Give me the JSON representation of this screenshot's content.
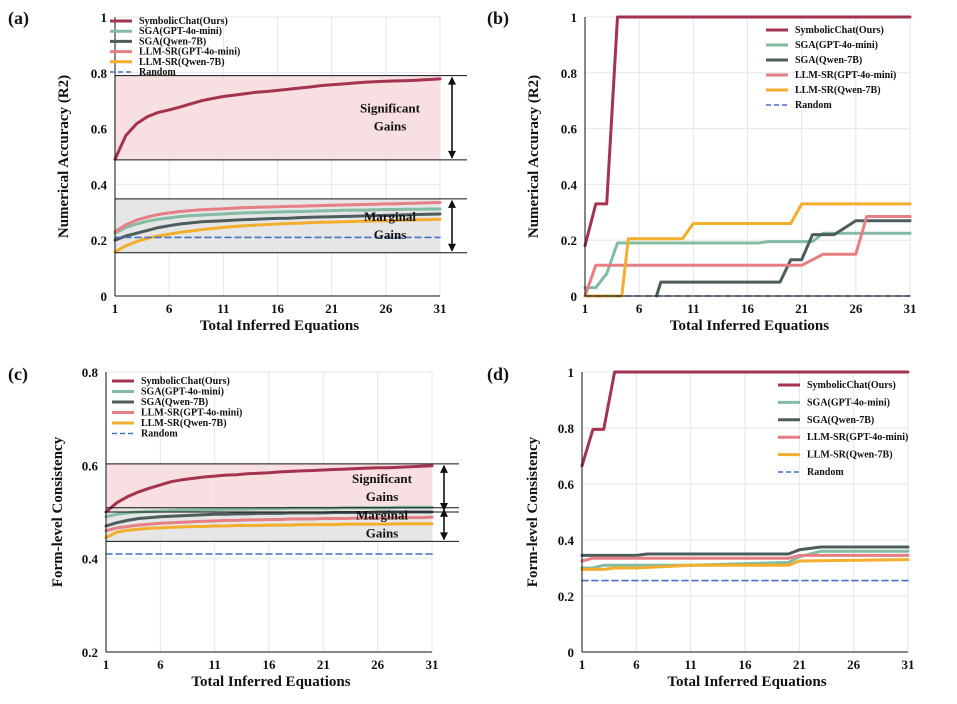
{
  "figure": {
    "panel_labels": [
      "(a)",
      "(b)",
      "(c)",
      "(d)"
    ]
  },
  "colors": {
    "SymbolicChat(Ours)": "#a3334f",
    "SGA(GPT-4o-mini)": "#83bca2",
    "SGA(Qwen-7B)": "#4d5d5e",
    "LLM-SR(GPT-4o-mini)": "#e57f84",
    "LLM-SR(Qwen-7B)": "#f2ae2c",
    "Random": "#4472c4",
    "significant_band": "#f6dcdf",
    "marginal_band": "#e3e3e3"
  },
  "chart_data": [
    {
      "panel": "(a)",
      "type": "line",
      "xlabel": "Total Inferred Equations",
      "ylabel": "Numerical Accuracy (R2)",
      "xlim": [
        1,
        31
      ],
      "ylim": [
        0,
        1
      ],
      "xticks": [
        1,
        6,
        11,
        16,
        21,
        26,
        31
      ],
      "yticks": [
        0,
        0.2,
        0.4,
        0.6,
        0.8,
        1
      ],
      "ytick_labels": [
        "0",
        "0.2",
        "0.4",
        "0.6",
        "0.8",
        "1"
      ],
      "x": [
        1,
        2,
        3,
        4,
        5,
        6,
        7,
        8,
        9,
        10,
        11,
        12,
        13,
        14,
        15,
        16,
        17,
        18,
        19,
        20,
        21,
        22,
        23,
        24,
        25,
        26,
        27,
        28,
        29,
        30,
        31
      ],
      "series": [
        {
          "name": "SymbolicChat(Ours)",
          "values": [
            0.49,
            0.575,
            0.618,
            0.643,
            0.658,
            0.667,
            0.677,
            0.689,
            0.7,
            0.708,
            0.715,
            0.72,
            0.725,
            0.73,
            0.733,
            0.737,
            0.741,
            0.745,
            0.749,
            0.754,
            0.757,
            0.76,
            0.763,
            0.766,
            0.768,
            0.77,
            0.771,
            0.772,
            0.774,
            0.776,
            0.778
          ]
        },
        {
          "name": "SGA(GPT-4o-mini)",
          "values": [
            0.225,
            0.245,
            0.258,
            0.268,
            0.275,
            0.28,
            0.285,
            0.288,
            0.29,
            0.292,
            0.294,
            0.296,
            0.298,
            0.299,
            0.3,
            0.301,
            0.302,
            0.303,
            0.304,
            0.305,
            0.306,
            0.307,
            0.308,
            0.308,
            0.309,
            0.31,
            0.31,
            0.311,
            0.311,
            0.312,
            0.312
          ]
        },
        {
          "name": "SGA(Qwen-7B)",
          "values": [
            0.2,
            0.215,
            0.225,
            0.235,
            0.245,
            0.252,
            0.258,
            0.262,
            0.266,
            0.268,
            0.27,
            0.272,
            0.274,
            0.275,
            0.277,
            0.278,
            0.279,
            0.281,
            0.282,
            0.283,
            0.284,
            0.285,
            0.286,
            0.287,
            0.288,
            0.289,
            0.29,
            0.291,
            0.292,
            0.293,
            0.294
          ]
        },
        {
          "name": "LLM-SR(GPT-4o-mini)",
          "values": [
            0.23,
            0.255,
            0.272,
            0.283,
            0.292,
            0.298,
            0.303,
            0.306,
            0.309,
            0.311,
            0.313,
            0.315,
            0.317,
            0.318,
            0.319,
            0.32,
            0.321,
            0.322,
            0.323,
            0.324,
            0.325,
            0.326,
            0.327,
            0.328,
            0.329,
            0.33,
            0.331,
            0.332,
            0.333,
            0.334,
            0.335
          ]
        },
        {
          "name": "LLM-SR(Qwen-7B)",
          "values": [
            0.158,
            0.18,
            0.195,
            0.207,
            0.215,
            0.222,
            0.228,
            0.233,
            0.238,
            0.242,
            0.246,
            0.249,
            0.252,
            0.254,
            0.256,
            0.258,
            0.26,
            0.261,
            0.263,
            0.264,
            0.265,
            0.266,
            0.267,
            0.268,
            0.269,
            0.27,
            0.271,
            0.272,
            0.273,
            0.274,
            0.275
          ]
        },
        {
          "name": "Random",
          "values": [
            0.21,
            0.21,
            0.21,
            0.21,
            0.21,
            0.21,
            0.21,
            0.21,
            0.21,
            0.21,
            0.21,
            0.21,
            0.21,
            0.21,
            0.21,
            0.21,
            0.21,
            0.21,
            0.21,
            0.21,
            0.21,
            0.21,
            0.21,
            0.21,
            0.21,
            0.21,
            0.21,
            0.21,
            0.21,
            0.21,
            0.21
          ]
        }
      ],
      "bands": [
        {
          "label": "Significant Gains",
          "lines": [
            "Significant",
            "Gains"
          ],
          "y_low": 0.488,
          "y_high": 0.79,
          "color_key": "significant_band"
        },
        {
          "label": "Marginal Gains",
          "lines": [
            "Marginal",
            "Gains"
          ],
          "y_low": 0.155,
          "y_high": 0.348,
          "color_key": "marginal_band"
        }
      ],
      "legend": {
        "position": "top-left",
        "inside_band": false
      }
    },
    {
      "panel": "(b)",
      "type": "line",
      "xlabel": "Total Inferred Equations",
      "ylabel": "Numerical Accuracy (R2)",
      "xlim": [
        1,
        31
      ],
      "ylim": [
        0,
        1
      ],
      "xticks": [
        1,
        6,
        11,
        16,
        21,
        26,
        31
      ],
      "yticks": [
        0,
        0.2,
        0.4,
        0.6,
        0.8,
        1
      ],
      "ytick_labels": [
        "0",
        "0.2",
        "0.4",
        "0.6",
        "0.8",
        "1"
      ],
      "series": [
        {
          "name": "SymbolicChat(Ours)",
          "x": [
            1,
            2,
            3,
            4,
            31
          ],
          "values": [
            0.18,
            0.33,
            0.33,
            1.0,
            1.0
          ]
        },
        {
          "name": "SGA(GPT-4o-mini)",
          "x": [
            1,
            2,
            3,
            4,
            10,
            17,
            18,
            21,
            22,
            23,
            31
          ],
          "values": [
            0.03,
            0.03,
            0.08,
            0.19,
            0.19,
            0.19,
            0.195,
            0.195,
            0.195,
            0.225,
            0.225
          ]
        },
        {
          "name": "SGA(Qwen-7B)",
          "x": [
            7.6,
            8,
            19,
            20,
            21,
            22,
            24,
            26,
            31
          ],
          "values": [
            0.0,
            0.05,
            0.05,
            0.13,
            0.13,
            0.22,
            0.22,
            0.27,
            0.27
          ]
        },
        {
          "name": "LLM-SR(GPT-4o-mini)",
          "x": [
            1,
            2,
            8,
            20,
            21,
            23,
            26,
            27,
            31
          ],
          "values": [
            0.0,
            0.11,
            0.11,
            0.11,
            0.11,
            0.15,
            0.15,
            0.285,
            0.285
          ]
        },
        {
          "name": "LLM-SR(Qwen-7B)",
          "x": [
            1,
            4.4,
            5,
            9,
            10,
            11,
            20,
            21,
            31
          ],
          "values": [
            0.0,
            0.0,
            0.205,
            0.205,
            0.205,
            0.26,
            0.26,
            0.33,
            0.33
          ]
        },
        {
          "name": "Random",
          "x": [
            1,
            31
          ],
          "values": [
            0.0,
            0.0
          ]
        }
      ],
      "bands": [],
      "legend": {
        "position": "top-right"
      }
    },
    {
      "panel": "(c)",
      "type": "line",
      "xlabel": "Total Inferred Equations",
      "ylabel": "Form-level Consistency",
      "xlim": [
        1,
        31
      ],
      "ylim": [
        0.2,
        0.8
      ],
      "xticks": [
        1,
        6,
        11,
        16,
        21,
        26,
        31
      ],
      "yticks": [
        0.2,
        0.4,
        0.6,
        0.8
      ],
      "ytick_labels": [
        "0.2",
        "0.4",
        "0.6",
        "0.8"
      ],
      "x": [
        1,
        2,
        3,
        4,
        5,
        6,
        7,
        8,
        9,
        10,
        11,
        12,
        13,
        14,
        15,
        16,
        17,
        18,
        19,
        20,
        21,
        22,
        23,
        24,
        25,
        26,
        27,
        28,
        29,
        30,
        31
      ],
      "series": [
        {
          "name": "SymbolicChat(Ours)",
          "values": [
            0.5,
            0.52,
            0.533,
            0.543,
            0.551,
            0.558,
            0.565,
            0.569,
            0.572,
            0.575,
            0.577,
            0.579,
            0.58,
            0.582,
            0.583,
            0.584,
            0.586,
            0.587,
            0.588,
            0.589,
            0.59,
            0.591,
            0.592,
            0.593,
            0.594,
            0.595,
            0.595,
            0.596,
            0.597,
            0.598,
            0.599
          ]
        },
        {
          "name": "SGA(GPT-4o-mini)",
          "values": [
            0.49,
            0.495,
            0.498,
            0.5,
            0.501,
            0.502,
            0.503,
            0.504,
            0.504,
            0.505,
            0.505,
            0.506,
            0.506,
            0.506,
            0.507,
            0.507,
            0.507,
            0.508,
            0.508,
            0.508,
            0.508,
            0.508,
            0.509,
            0.509,
            0.509,
            0.509,
            0.509,
            0.51,
            0.51,
            0.51,
            0.51
          ]
        },
        {
          "name": "SGA(Qwen-7B)",
          "values": [
            0.47,
            0.477,
            0.482,
            0.486,
            0.488,
            0.49,
            0.491,
            0.492,
            0.493,
            0.494,
            0.495,
            0.495,
            0.496,
            0.496,
            0.497,
            0.497,
            0.497,
            0.498,
            0.498,
            0.498,
            0.498,
            0.499,
            0.499,
            0.499,
            0.499,
            0.5,
            0.5,
            0.5,
            0.5,
            0.5,
            0.5
          ]
        },
        {
          "name": "LLM-SR(GPT-4o-mini)",
          "values": [
            0.46,
            0.466,
            0.469,
            0.472,
            0.474,
            0.476,
            0.477,
            0.478,
            0.479,
            0.48,
            0.481,
            0.482,
            0.482,
            0.483,
            0.483,
            0.484,
            0.484,
            0.485,
            0.485,
            0.485,
            0.486,
            0.486,
            0.486,
            0.487,
            0.487,
            0.487,
            0.488,
            0.488,
            0.488,
            0.488,
            0.489
          ]
        },
        {
          "name": "LLM-SR(Qwen-7B)",
          "values": [
            0.445,
            0.457,
            0.461,
            0.463,
            0.465,
            0.466,
            0.467,
            0.468,
            0.469,
            0.469,
            0.47,
            0.47,
            0.471,
            0.471,
            0.471,
            0.472,
            0.472,
            0.472,
            0.473,
            0.473,
            0.473,
            0.473,
            0.474,
            0.474,
            0.474,
            0.474,
            0.474,
            0.475,
            0.475,
            0.475,
            0.475
          ]
        },
        {
          "name": "Random",
          "values": [
            0.41,
            0.41,
            0.41,
            0.41,
            0.41,
            0.41,
            0.41,
            0.41,
            0.41,
            0.41,
            0.41,
            0.41,
            0.41,
            0.41,
            0.41,
            0.41,
            0.41,
            0.41,
            0.41,
            0.41,
            0.41,
            0.41,
            0.41,
            0.41,
            0.41,
            0.41,
            0.41,
            0.41,
            0.41,
            0.41,
            0.41
          ]
        }
      ],
      "bands": [
        {
          "label": "Significant Gains",
          "lines": [
            "Significant",
            "Gains"
          ],
          "y_low": 0.5,
          "y_high": 0.603,
          "color_key": "significant_band"
        },
        {
          "label": "Marginal Gains",
          "lines": [
            "Marginal",
            "Gains"
          ],
          "y_low": 0.437,
          "y_high": 0.509,
          "color_key": "marginal_band"
        }
      ],
      "legend": {
        "position": "top-left"
      }
    },
    {
      "panel": "(d)",
      "type": "line",
      "xlabel": "Total Inferred Equations",
      "ylabel": "Form-level Consistency",
      "xlim": [
        1,
        31
      ],
      "ylim": [
        0,
        1
      ],
      "xticks": [
        1,
        6,
        11,
        16,
        21,
        26,
        31
      ],
      "yticks": [
        0,
        0.2,
        0.4,
        0.6,
        0.8,
        1
      ],
      "ytick_labels": [
        "0",
        "0.2",
        "0.4",
        "0.6",
        "0.8",
        "1"
      ],
      "series": [
        {
          "name": "SymbolicChat(Ours)",
          "x": [
            1,
            2,
            3,
            4,
            31
          ],
          "values": [
            0.665,
            0.795,
            0.795,
            1.0,
            1.0
          ]
        },
        {
          "name": "SGA(GPT-4o-mini)",
          "x": [
            1,
            2,
            3,
            11,
            20,
            21,
            23,
            31
          ],
          "values": [
            0.3,
            0.3,
            0.31,
            0.31,
            0.32,
            0.34,
            0.36,
            0.36
          ]
        },
        {
          "name": "SGA(Qwen-7B)",
          "x": [
            1,
            6,
            7,
            20,
            21,
            23,
            31
          ],
          "values": [
            0.345,
            0.345,
            0.35,
            0.35,
            0.365,
            0.375,
            0.375
          ]
        },
        {
          "name": "LLM-SR(GPT-4o-mini)",
          "x": [
            1,
            2,
            20,
            21,
            31
          ],
          "values": [
            0.325,
            0.335,
            0.335,
            0.345,
            0.345
          ]
        },
        {
          "name": "LLM-SR(Qwen-7B)",
          "x": [
            1,
            3,
            4,
            6,
            11,
            20,
            21,
            31
          ],
          "values": [
            0.295,
            0.295,
            0.3,
            0.3,
            0.31,
            0.31,
            0.325,
            0.33
          ]
        },
        {
          "name": "Random",
          "x": [
            1,
            31
          ],
          "values": [
            0.255,
            0.255
          ]
        }
      ],
      "bands": [],
      "legend": {
        "position": "top-right"
      }
    }
  ]
}
